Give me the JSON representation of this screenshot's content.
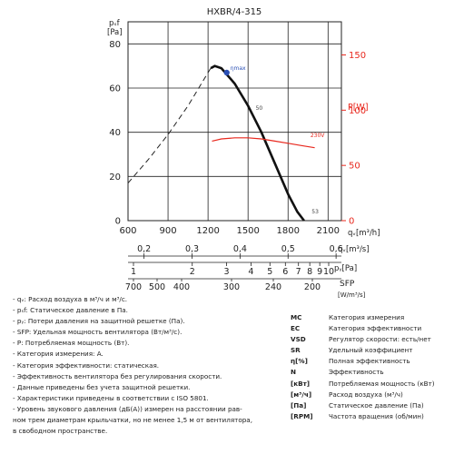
{
  "chart_data": {
    "type": "line",
    "title": "HXBR/4-315",
    "left_axis": {
      "label_top": "pₛf",
      "label_unit": "[Pa]",
      "range": [
        0,
        90
      ],
      "ticks": [
        0,
        20,
        40,
        60,
        80
      ]
    },
    "right_axis": {
      "label": "P[W]",
      "color": "#e8281e",
      "range": [
        0,
        180
      ],
      "ticks": [
        0,
        50,
        100,
        150
      ]
    },
    "x_axis": {
      "label": "qᵥ[m³/h]",
      "range": [
        600,
        2200
      ],
      "ticks": [
        600,
        900,
        1200,
        1500,
        1800,
        2100
      ]
    },
    "series": [
      {
        "name": "curve-pressure-dashed",
        "style": "dashed",
        "color": "#222222",
        "points": [
          [
            600,
            17
          ],
          [
            750,
            27.5
          ],
          [
            900,
            39
          ],
          [
            1050,
            52
          ],
          [
            1180,
            65
          ],
          [
            1220,
            69
          ]
        ]
      },
      {
        "name": "curve-pressure-solid",
        "style": "solid",
        "color": "#111111",
        "points": [
          [
            1220,
            69
          ],
          [
            1250,
            70
          ],
          [
            1300,
            69
          ],
          [
            1400,
            62
          ],
          [
            1500,
            52
          ],
          [
            1600,
            40
          ],
          [
            1700,
            26
          ],
          [
            1800,
            12
          ],
          [
            1870,
            4
          ],
          [
            1920,
            0
          ]
        ]
      },
      {
        "name": "curve-power",
        "style": "solid",
        "color": "#e8281e",
        "axis": "right",
        "points": [
          [
            1230,
            72
          ],
          [
            1300,
            74
          ],
          [
            1400,
            75
          ],
          [
            1500,
            75
          ],
          [
            1600,
            74
          ],
          [
            1700,
            72
          ],
          [
            1800,
            70
          ],
          [
            1900,
            68
          ],
          [
            2000,
            66
          ]
        ]
      }
    ],
    "annotations": [
      {
        "text": "ηmax",
        "x": 1340,
        "y": 67
      },
      {
        "text": "50",
        "x": 1530,
        "y": 49
      },
      {
        "text": "230V",
        "x": 1940,
        "y": 73
      },
      {
        "text": "53",
        "x": 1950,
        "y": 2
      }
    ],
    "eta_max_point": [
      1340,
      67
    ],
    "secondary_scales": [
      {
        "label": "qᵥ[m³/s]",
        "ticks": [
          {
            "text": "0,2",
            "value": 0.2
          },
          {
            "text": "0,3",
            "value": 0.3
          },
          {
            "text": "0,4",
            "value": 0.4
          },
          {
            "text": "0,5",
            "value": 0.5
          },
          {
            "text": "0,6",
            "value": 0.6
          }
        ]
      },
      {
        "label": "pᵧ[Pa]",
        "ticks": [
          {
            "text": "1",
            "value": 1
          },
          {
            "text": "2",
            "value": 2
          },
          {
            "text": "3",
            "value": 3
          },
          {
            "text": "4",
            "value": 4
          },
          {
            "text": "5",
            "value": 5
          },
          {
            "text": "6",
            "value": 6
          },
          {
            "text": "7",
            "value": 7
          },
          {
            "text": "8",
            "value": 8
          },
          {
            "text": "9",
            "value": 9
          },
          {
            "text": "10",
            "value": 10
          }
        ]
      },
      {
        "label": "SFP",
        "unit": "[W/m³/s]",
        "ticks": [
          {
            "text": "700",
            "value": 700
          },
          {
            "text": "500",
            "value": 500
          },
          {
            "text": "400",
            "value": 400
          },
          {
            "text": "300",
            "value": 300
          },
          {
            "text": "240",
            "value": 240
          },
          {
            "text": "200",
            "value": 200
          }
        ]
      }
    ]
  },
  "notes": [
    "- qᵥ: Расход воздуха в м³/ч и м³/с.",
    "- pₛf: Статическое давление в Па.",
    "- pᵧ: Потери давления на защитной решетке (Па).",
    "- SFP: Удельная мощность вентилятора (Вт/м³/с).",
    "- P: Потребляемая мощность (Вт).",
    "- Категория измерения: A.",
    "- Категория эффективности: статическая.",
    "- Эффективность вентилятора без регулирования скорости.",
    "- Данные приведены без учета защитной решетки.",
    "- Характеристики приведены в соответствии с ISO 5801.",
    "- Уровень звукового давления (дБ(А)) измерен на расстоянии рав-",
    "  ном трем диаметрам крыльчатки, но не менее 1,5 м от вентилятора,",
    "  в свободном пространстве."
  ],
  "legend": [
    {
      "key": "MC",
      "value": "Категория измерения"
    },
    {
      "key": "EC",
      "value": "Категория эффективности"
    },
    {
      "key": "VSD",
      "value": "Регулятор скорости: есть/нет"
    },
    {
      "key": "SR",
      "value": "Удельный коэффициент"
    },
    {
      "key": "η[%]",
      "value": "Полная эффективность"
    },
    {
      "key": "N",
      "value": "Эффективность"
    },
    {
      "key": "[кВт]",
      "value": "Потребляемая мощность (кВт)"
    },
    {
      "key": "[м³/ч]",
      "value": "Расход воздуха (м³/ч)"
    },
    {
      "key": "[Па]",
      "value": "Статическое давление (Па)"
    },
    {
      "key": "[RPM]",
      "value": "Частота вращения (об/мин)"
    }
  ]
}
